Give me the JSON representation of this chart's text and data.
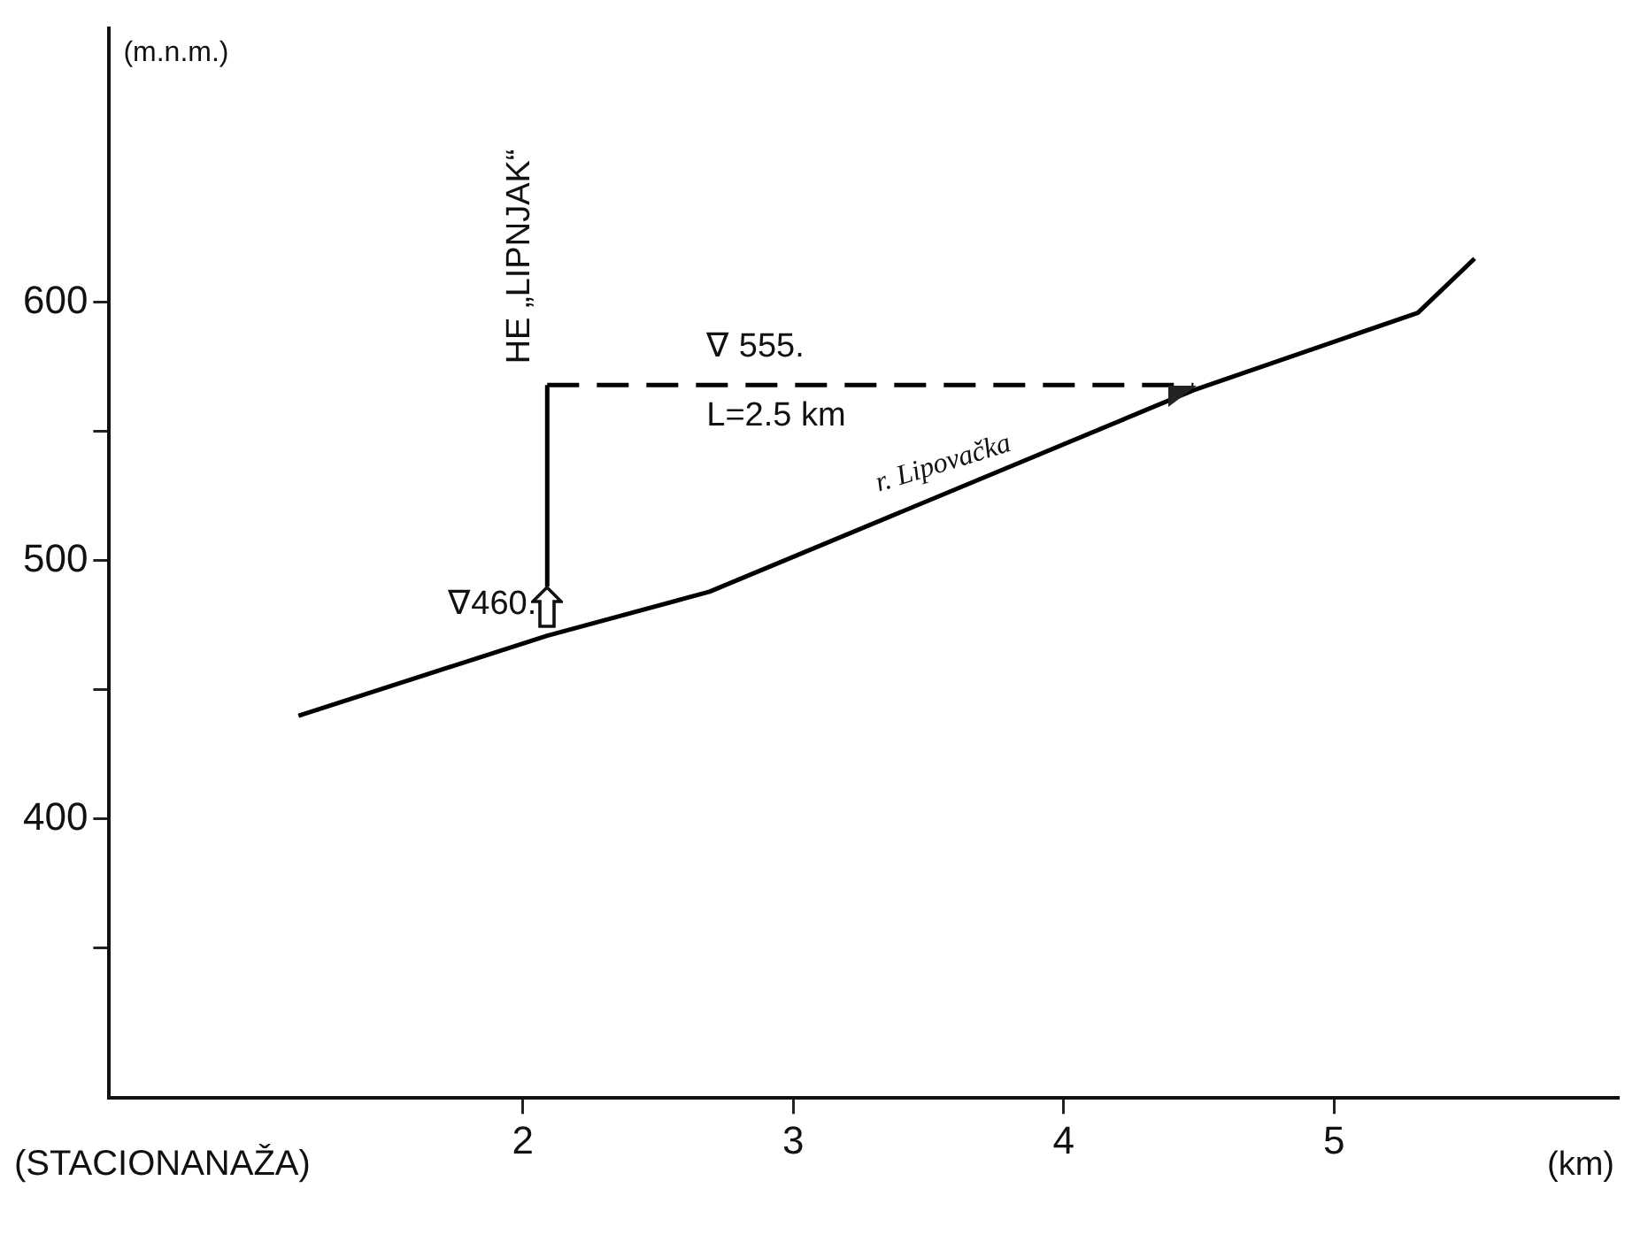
{
  "chart_data": {
    "type": "line",
    "xlabel": "(km)",
    "ylabel": "(m.n.m.)",
    "xlim": [
      0.47,
      6.05
    ],
    "xticks": [
      2,
      3,
      4,
      5
    ],
    "ylim": [
      292,
      706
    ],
    "yticks": [
      {
        "value": 350,
        "label": null
      },
      400,
      {
        "value": 450,
        "label": null
      },
      500,
      {
        "value": 550,
        "label": null
      },
      600
    ],
    "grid": false,
    "legend": false,
    "marker": "none",
    "series": [
      {
        "color": "#000000",
        "line_style": "solid",
        "x": [
          1.17,
          2.09,
          2.69,
          4.48,
          5.31,
          5.52
        ],
        "values": [
          440,
          471,
          488,
          566,
          596,
          617
        ]
      },
      {
        "color": "#000000",
        "line_style": "dashed",
        "x": [
          2.09,
          4.48
        ],
        "values": [
          568,
          568
        ]
      },
      {
        "color": "#000000",
        "line_style": "solid",
        "x": [
          2.09,
          2.09
        ],
        "values": [
          490,
          568
        ]
      }
    ],
    "annotations": [
      "HE „LIPNJAK“",
      "∇ 555.",
      "L=2.5 km",
      "∇460.",
      "r. Lipovačka",
      "(STACIONANAŽA)"
    ]
  }
}
